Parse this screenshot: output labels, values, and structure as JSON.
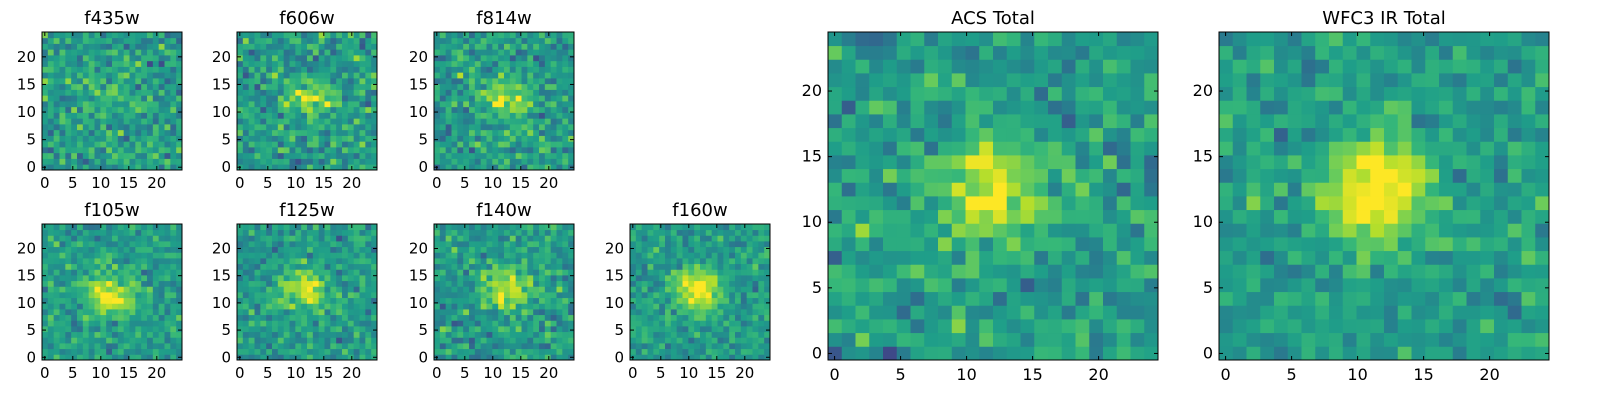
{
  "chart_data": [
    {
      "type": "heatmap",
      "title": "f435w",
      "xticks": [
        "0",
        "5",
        "10",
        "15",
        "20"
      ],
      "yticks": [
        "0",
        "5",
        "10",
        "15",
        "20"
      ],
      "xlim": [
        0,
        24
      ],
      "ylim": [
        0,
        24
      ],
      "grid_size": 24,
      "colormap": "viridis",
      "peak": {
        "x": 12,
        "y": 12,
        "strength": 0.1
      },
      "noise": 0.28,
      "seed": 11
    },
    {
      "type": "heatmap",
      "title": "f606w",
      "xticks": [
        "0",
        "5",
        "10",
        "15",
        "20"
      ],
      "yticks": [
        "0",
        "5",
        "10",
        "15",
        "20"
      ],
      "xlim": [
        0,
        24
      ],
      "ylim": [
        0,
        24
      ],
      "grid_size": 24,
      "colormap": "viridis",
      "peak": {
        "x": 12,
        "y": 12,
        "strength": 0.3
      },
      "noise": 0.3,
      "seed": 23
    },
    {
      "type": "heatmap",
      "title": "f814w",
      "xticks": [
        "0",
        "5",
        "10",
        "15",
        "20"
      ],
      "yticks": [
        "0",
        "5",
        "10",
        "15",
        "20"
      ],
      "xlim": [
        0,
        24
      ],
      "ylim": [
        0,
        24
      ],
      "grid_size": 24,
      "colormap": "viridis",
      "peak": {
        "x": 12,
        "y": 12,
        "strength": 0.35
      },
      "noise": 0.28,
      "seed": 37
    },
    {
      "type": "heatmap",
      "title": "f105w",
      "xticks": [
        "0",
        "5",
        "10",
        "15",
        "20"
      ],
      "yticks": [
        "0",
        "5",
        "10",
        "15",
        "20"
      ],
      "xlim": [
        0,
        24
      ],
      "ylim": [
        0,
        24
      ],
      "grid_size": 24,
      "colormap": "viridis",
      "peak": {
        "x": 11,
        "y": 11,
        "strength": 0.45
      },
      "noise": 0.22,
      "seed": 41
    },
    {
      "type": "heatmap",
      "title": "f125w",
      "xticks": [
        "0",
        "5",
        "10",
        "15",
        "20"
      ],
      "yticks": [
        "0",
        "5",
        "10",
        "15",
        "20"
      ],
      "xlim": [
        0,
        24
      ],
      "ylim": [
        0,
        24
      ],
      "grid_size": 24,
      "colormap": "viridis",
      "peak": {
        "x": 11,
        "y": 12,
        "strength": 0.4
      },
      "noise": 0.24,
      "seed": 53
    },
    {
      "type": "heatmap",
      "title": "f140w",
      "xticks": [
        "0",
        "5",
        "10",
        "15",
        "20"
      ],
      "yticks": [
        "0",
        "5",
        "10",
        "15",
        "20"
      ],
      "xlim": [
        0,
        24
      ],
      "ylim": [
        0,
        24
      ],
      "grid_size": 24,
      "colormap": "viridis",
      "peak": {
        "x": 12,
        "y": 12,
        "strength": 0.4
      },
      "noise": 0.27,
      "seed": 67
    },
    {
      "type": "heatmap",
      "title": "f160w",
      "xticks": [
        "0",
        "5",
        "10",
        "15",
        "20"
      ],
      "yticks": [
        "0",
        "5",
        "10",
        "15",
        "20"
      ],
      "xlim": [
        0,
        24
      ],
      "ylim": [
        0,
        24
      ],
      "grid_size": 24,
      "colormap": "viridis",
      "peak": {
        "x": 11,
        "y": 12,
        "strength": 0.5
      },
      "noise": 0.22,
      "seed": 79
    },
    {
      "type": "heatmap",
      "title": "ACS Total",
      "xticks": [
        "0",
        "5",
        "10",
        "15",
        "20"
      ],
      "yticks": [
        "0",
        "5",
        "10",
        "15",
        "20"
      ],
      "xlim": [
        0,
        24
      ],
      "ylim": [
        0,
        24
      ],
      "grid_size": 24,
      "colormap": "viridis",
      "peak": {
        "x": 11,
        "y": 12,
        "strength": 0.45
      },
      "noise": 0.26,
      "seed": 97
    },
    {
      "type": "heatmap",
      "title": "WFC3 IR Total",
      "xticks": [
        "0",
        "5",
        "10",
        "15",
        "20"
      ],
      "yticks": [
        "0",
        "5",
        "10",
        "15",
        "20"
      ],
      "xlim": [
        0,
        24
      ],
      "ylim": [
        0,
        24
      ],
      "grid_size": 24,
      "colormap": "viridis",
      "peak": {
        "x": 11,
        "y": 12,
        "strength": 0.55
      },
      "noise": 0.2,
      "seed": 131
    }
  ]
}
